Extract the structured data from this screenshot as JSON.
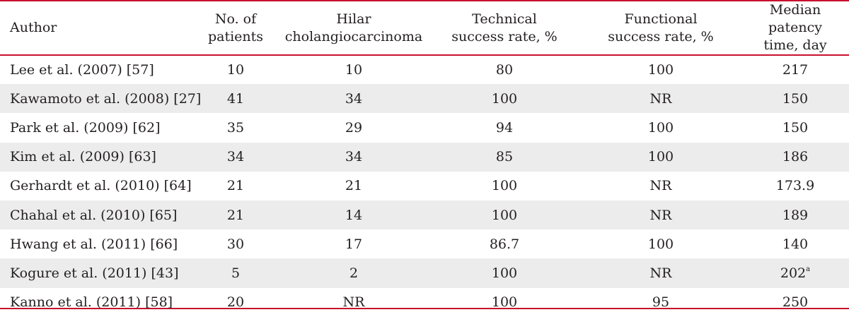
{
  "table": {
    "headers": [
      [
        "Author"
      ],
      [
        "No. of",
        "patients"
      ],
      [
        "Hilar",
        "cholangiocarcinoma"
      ],
      [
        "Technical",
        "success rate, %"
      ],
      [
        "Functional",
        "success rate, %"
      ],
      [
        "Median patency",
        "time, day"
      ]
    ],
    "rows": [
      {
        "author": "Lee et al. (2007) [57]",
        "patients": "10",
        "hilar": "10",
        "technical": "80",
        "functional": "100",
        "patency": "217",
        "patency_note": ""
      },
      {
        "author": "Kawamoto et al. (2008) [27]",
        "patients": "41",
        "hilar": "34",
        "technical": "100",
        "functional": "NR",
        "patency": "150",
        "patency_note": ""
      },
      {
        "author": "Park et al. (2009) [62]",
        "patients": "35",
        "hilar": "29",
        "technical": "94",
        "functional": "100",
        "patency": "150",
        "patency_note": ""
      },
      {
        "author": "Kim et al. (2009) [63]",
        "patients": "34",
        "hilar": "34",
        "technical": "85",
        "functional": "100",
        "patency": "186",
        "patency_note": ""
      },
      {
        "author": "Gerhardt et al. (2010) [64]",
        "patients": "21",
        "hilar": "21",
        "technical": "100",
        "functional": "NR",
        "patency": "173.9",
        "patency_note": ""
      },
      {
        "author": "Chahal et al. (2010) [65]",
        "patients": "21",
        "hilar": "14",
        "technical": "100",
        "functional": "NR",
        "patency": "189",
        "patency_note": ""
      },
      {
        "author": "Hwang et al. (2011) [66]",
        "patients": "30",
        "hilar": "17",
        "technical": "86.7",
        "functional": "100",
        "patency": "140",
        "patency_note": ""
      },
      {
        "author": "Kogure et al. (2011) [43]",
        "patients": "5",
        "hilar": "2",
        "technical": "100",
        "functional": "NR",
        "patency": "202",
        "patency_note": "a"
      },
      {
        "author": "Kanno et al. (2011) [58]",
        "patients": "20",
        "hilar": "NR",
        "technical": "100",
        "functional": "95",
        "patency": "250",
        "patency_note": ""
      }
    ]
  },
  "colors": {
    "rule": "#c8102e",
    "stripe": "#ececec",
    "text": "#231f20"
  }
}
